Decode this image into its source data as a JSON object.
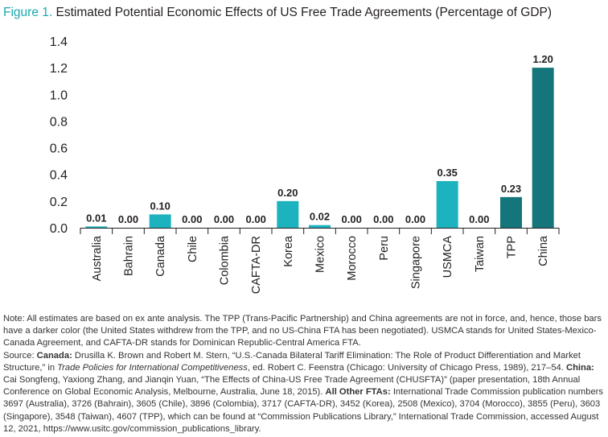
{
  "title": {
    "figure_label": "Figure 1.",
    "text": "Estimated Potential Economic Effects of US Free Trade Agreements (Percentage of GDP)"
  },
  "chart_data": {
    "type": "bar",
    "title": "Estimated Potential Economic Effects of US Free Trade Agreements (Percentage of GDP)",
    "xlabel": "",
    "ylabel": "",
    "ylim": [
      0,
      1.4
    ],
    "yticks": [
      "0.0",
      "0.2",
      "0.4",
      "0.6",
      "0.8",
      "1.0",
      "1.2",
      "1.4"
    ],
    "grid": false,
    "categories": [
      "Australia",
      "Bahrain",
      "Canada",
      "Chile",
      "Colombia",
      "CAFTA-DR",
      "Korea",
      "Mexico",
      "Morocco",
      "Peru",
      "Singapore",
      "USMCA",
      "Taiwan",
      "TPP",
      "China"
    ],
    "values": [
      0.01,
      0.0,
      0.1,
      0.0,
      0.0,
      0.0,
      0.2,
      0.02,
      0.0,
      0.0,
      0.0,
      0.35,
      0.0,
      0.23,
      1.2
    ],
    "value_labels": [
      "0.01",
      "0.00",
      "0.10",
      "0.00",
      "0.00",
      "0.00",
      "0.20",
      "0.02",
      "0.00",
      "0.00",
      "0.00",
      "0.35",
      "0.00",
      "0.23",
      "1.20"
    ],
    "in_force": [
      true,
      true,
      true,
      true,
      true,
      true,
      true,
      true,
      true,
      true,
      true,
      true,
      true,
      false,
      false
    ],
    "colors": {
      "in_force": "#1db3be",
      "not_in_force": "#14757b"
    }
  },
  "notes": {
    "note": "Note: All estimates are based on ex ante analysis. The TPP (Trans-Pacific Partnership) and China agreements are not in force, and, hence, those bars have a darker color (the United States withdrew from the TPP, and no US-China FTA has been negotiated). USMCA stands for United States-Mexico-Canada Agreement, and CAFTA-DR stands for Dominican Republic-Central America FTA.",
    "source_prefix": "Source: ",
    "canada_label": "Canada:",
    "canada_text_1": " Drusilla K. Brown and Robert M. Stern, “U.S.-Canada Bilateral Tariff Elimination: The Role of Product Differentiation and Market Structure,” in ",
    "canada_book": "Trade Policies for International Competitiveness",
    "canada_text_2": ", ed. Robert C. Feenstra (Chicago: University of Chicago Press, 1989), 217–54. ",
    "china_label": "China:",
    "china_text": " Cai Songfeng, Yaxiong Zhang, and Jianqin Yuan, “The Effects of China-US Free Trade Agreement (CHUSFTA)” (paper presentation, 18th Annual Conference on Global Economic Analysis, Melbourne, Australia, June 18, 2015). ",
    "other_label": "All Other FTAs:",
    "other_text": " International Trade Commission publication numbers 3697 (Australia), 3726 (Bahrain), 3605 (Chile), 3896 (Colombia), 3717 (CAFTA-DR), 3452 (Korea), 2508 (Mexico), 3704 (Morocco), 3855 (Peru), 3603 (Singapore), 3548 (Taiwan), 4607 (TPP), which can be found at “Commission Publications Library,” International Trade Commission, accessed August 12, 2021, https://www.usitc.gov/commission_publications_library."
  }
}
